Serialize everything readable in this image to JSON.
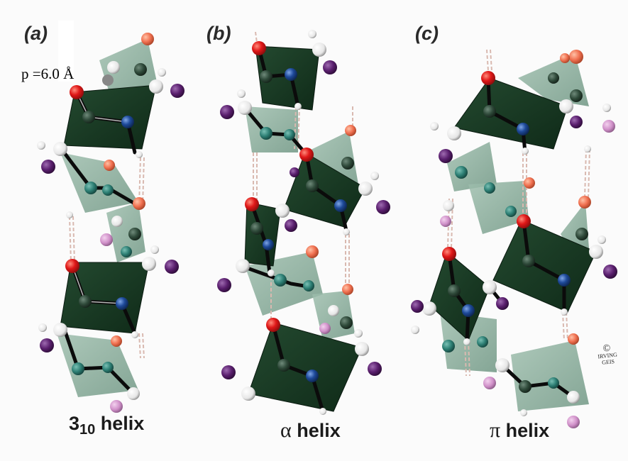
{
  "panels": [
    {
      "label": "(a)",
      "caption_main": "3",
      "caption_sub": "10",
      "caption_rest": " helix"
    },
    {
      "label": "(b)",
      "caption_symbol": "α",
      "caption_rest": " helix"
    },
    {
      "label": "(c)",
      "caption_symbol": "π",
      "caption_rest": " helix"
    }
  ],
  "annotation": {
    "pitch": "p =6.0 Å"
  },
  "signature": {
    "copyright": "©",
    "artist": "IRVING GEIS"
  },
  "colors": {
    "peptide_plane_dark": "#173a22",
    "peptide_plane_light": "#7fa592",
    "oxygen": "#e01818",
    "nitrogen": "#1e4a9a",
    "carbon": "#2f4a3a",
    "side_chain": "#5a1f6e",
    "hydrogen": "#f4f4f4"
  }
}
